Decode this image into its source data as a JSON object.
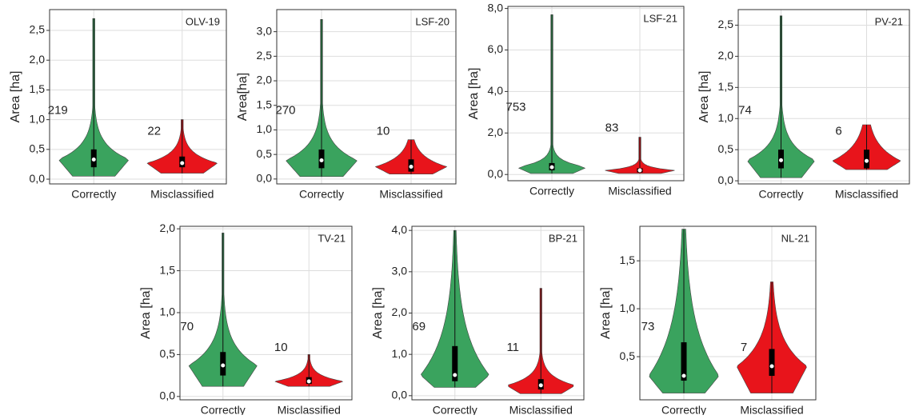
{
  "chart_data": [
    {
      "type": "violin",
      "label": "OLV-19",
      "y_label": "Area [ha]",
      "categories": [
        "Correctly",
        "Misclassified"
      ],
      "ylim": [
        -0.08,
        2.85
      ],
      "yticks": [
        {
          "value": 0,
          "label": "0,0"
        },
        {
          "value": 0.5,
          "label": "0,5"
        },
        {
          "value": 1,
          "label": "1,0"
        },
        {
          "value": 1.5,
          "label": "1,5"
        },
        {
          "value": 2,
          "label": "2,0"
        },
        {
          "value": 2.5,
          "label": "2,5"
        }
      ],
      "violins": [
        {
          "color": "#3aa35e",
          "min": 0.05,
          "q1": 0.2,
          "median": 0.33,
          "q3": 0.5,
          "max": 2.7,
          "n": 219
        },
        {
          "color": "#e8141b",
          "min": 0.1,
          "q1": 0.2,
          "median": 0.27,
          "q3": 0.38,
          "max": 1.0,
          "n": 22
        }
      ]
    },
    {
      "type": "violin",
      "label": "LSF-20",
      "y_label": "Area[ha]",
      "categories": [
        "Correctly",
        "Misclassified"
      ],
      "ylim": [
        -0.1,
        3.45
      ],
      "yticks": [
        {
          "value": 0,
          "label": "0,0"
        },
        {
          "value": 0.5,
          "label": "0,5"
        },
        {
          "value": 1,
          "label": "1,0"
        },
        {
          "value": 1.5,
          "label": "1,5"
        },
        {
          "value": 2,
          "label": "2,0"
        },
        {
          "value": 2.5,
          "label": "2,5"
        },
        {
          "value": 3,
          "label": "3,0"
        }
      ],
      "violins": [
        {
          "color": "#3aa35e",
          "min": 0.05,
          "q1": 0.22,
          "median": 0.38,
          "q3": 0.6,
          "max": 3.25,
          "n": 270
        },
        {
          "color": "#e8141b",
          "min": 0.1,
          "q1": 0.15,
          "median": 0.25,
          "q3": 0.4,
          "max": 0.8,
          "n": 10
        }
      ]
    },
    {
      "type": "violin",
      "label": "LSF-21",
      "y_label": "Area [ha]",
      "categories": [
        "Correctly",
        "Misclassified"
      ],
      "ylim": [
        -0.3,
        8.1
      ],
      "yticks": [
        {
          "value": 0,
          "label": "0,0"
        },
        {
          "value": 2,
          "label": "2,0"
        },
        {
          "value": 4,
          "label": "4,0"
        },
        {
          "value": 6,
          "label": "6,0"
        },
        {
          "value": 8,
          "label": "8,0"
        }
      ],
      "violins": [
        {
          "color": "#3aa35e",
          "min": 0.05,
          "q1": 0.2,
          "median": 0.35,
          "q3": 0.55,
          "max": 7.7,
          "n": 753
        },
        {
          "color": "#e8141b",
          "min": 0.05,
          "q1": 0.1,
          "median": 0.2,
          "q3": 0.3,
          "max": 1.8,
          "n": 83
        }
      ]
    },
    {
      "type": "violin",
      "label": "PV-21",
      "y_label": "Area [ha]",
      "categories": [
        "Correctly",
        "Misclassified"
      ],
      "ylim": [
        -0.05,
        2.75
      ],
      "yticks": [
        {
          "value": 0,
          "label": "0,0"
        },
        {
          "value": 0.5,
          "label": "0,5"
        },
        {
          "value": 1,
          "label": "1,0"
        },
        {
          "value": 1.5,
          "label": "1,5"
        },
        {
          "value": 2,
          "label": "2,0"
        },
        {
          "value": 2.5,
          "label": "2,5"
        }
      ],
      "violins": [
        {
          "color": "#3aa35e",
          "min": 0.05,
          "q1": 0.2,
          "median": 0.33,
          "q3": 0.5,
          "max": 2.65,
          "n": 74
        },
        {
          "color": "#e8141b",
          "min": 0.18,
          "q1": 0.2,
          "median": 0.32,
          "q3": 0.5,
          "max": 0.9,
          "n": 6
        }
      ]
    },
    {
      "type": "violin",
      "label": "TV-21",
      "y_label": "Area [ha]",
      "categories": [
        "Correctly",
        "Misclassified"
      ],
      "ylim": [
        -0.04,
        2.03
      ],
      "yticks": [
        {
          "value": 0,
          "label": "0,0"
        },
        {
          "value": 0.5,
          "label": "0,5"
        },
        {
          "value": 1,
          "label": "1,0"
        },
        {
          "value": 1.5,
          "label": "1,5"
        },
        {
          "value": 2,
          "label": "2,0"
        }
      ],
      "violins": [
        {
          "color": "#3aa35e",
          "min": 0.12,
          "q1": 0.25,
          "median": 0.37,
          "q3": 0.53,
          "max": 1.95,
          "n": 70
        },
        {
          "color": "#e8141b",
          "min": 0.12,
          "q1": 0.15,
          "median": 0.18,
          "q3": 0.23,
          "max": 0.5,
          "n": 10
        }
      ]
    },
    {
      "type": "violin",
      "label": "BP-21",
      "y_label": "Area [ha]",
      "categories": [
        "Correctly",
        "Misclassified"
      ],
      "ylim": [
        -0.1,
        4.1
      ],
      "yticks": [
        {
          "value": 0,
          "label": "0,0"
        },
        {
          "value": 1,
          "label": "1,0"
        },
        {
          "value": 2,
          "label": "2,0"
        },
        {
          "value": 3,
          "label": "3,0"
        },
        {
          "value": 4,
          "label": "4,0"
        }
      ],
      "violins": [
        {
          "color": "#3aa35e",
          "min": 0.2,
          "q1": 0.35,
          "median": 0.5,
          "q3": 1.2,
          "max": 4.0,
          "n": 69
        },
        {
          "color": "#e8141b",
          "min": 0.05,
          "q1": 0.15,
          "median": 0.25,
          "q3": 0.4,
          "max": 2.6,
          "n": 11
        }
      ]
    },
    {
      "type": "violin",
      "label": "NL-21",
      "y_label": "Area [ha]",
      "categories": [
        "Correctly",
        "Misclassified"
      ],
      "ylim": [
        0.05,
        1.86
      ],
      "yticks": [
        {
          "value": 0.5,
          "label": "0,5"
        },
        {
          "value": 1,
          "label": "1,0"
        },
        {
          "value": 1.5,
          "label": "1,5"
        }
      ],
      "violins": [
        {
          "color": "#3aa35e",
          "min": 0.12,
          "q1": 0.25,
          "median": 0.3,
          "q3": 0.65,
          "max": 1.83,
          "n": 73
        },
        {
          "color": "#e8141b",
          "min": 0.12,
          "q1": 0.3,
          "median": 0.4,
          "q3": 0.58,
          "max": 1.28,
          "n": 7
        }
      ]
    }
  ]
}
